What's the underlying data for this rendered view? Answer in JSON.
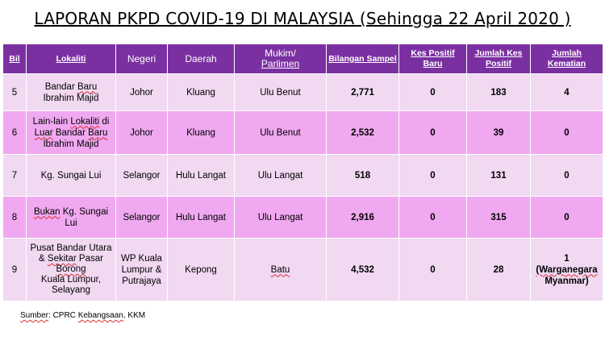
{
  "title": "LAPORAN PKPD COVID-19  DI MALAYSIA (Sehingga 22 April 2020 )",
  "columns": {
    "bil": "Bil",
    "lokaliti": "Lokaliti",
    "negeri": "Negeri",
    "daerah": "Daerah",
    "mukim_l1": "Mukim/",
    "mukim_l2": "Parlimen",
    "sampel": "Bilangan Sampel",
    "positif_baru_l1": "Kes Positif",
    "positif_baru_l2": "Baru",
    "jumlah_kes_l1": "Jumlah Kes",
    "jumlah_kes_l2": "Positif",
    "kematian_l1": "Jumlah",
    "kematian_l2": "Kematian"
  },
  "rows": [
    {
      "bil": "5",
      "lok_l1_a": "Bandar ",
      "lok_l1_b": "Baru",
      "lok_l2": "Ibrahim Majid",
      "negeri": "Johor",
      "daerah": "Kluang",
      "mukim": "Ulu Benut",
      "sampel": "2,771",
      "baru": "0",
      "jumlah": "183",
      "kematian": "4"
    },
    {
      "bil": "6",
      "lok_l1_a": "Lain-lain ",
      "lok_l1_b": "Lokaliti",
      "lok_l1_c": " di",
      "lok_l2_a": "Luar",
      "lok_l2_b": " Bandar ",
      "lok_l2_c": "Baru",
      "lok_l3": "Ibrahim Majid",
      "negeri": "Johor",
      "daerah": "Kluang",
      "mukim": "Ulu Benut",
      "sampel": "2,532",
      "baru": "0",
      "jumlah": "39",
      "kematian": "0"
    },
    {
      "bil": "7",
      "lokaliti": "Kg. Sungai Lui",
      "negeri": "Selangor",
      "daerah": "Hulu Langat",
      "mukim": "Ulu Langat",
      "sampel": "518",
      "baru": "0",
      "jumlah": "131",
      "kematian": "0"
    },
    {
      "bil": "8",
      "lok_l1_a": "Bukan",
      "lok_l1_b": " Kg. Sungai",
      "lok_l2": "Lui",
      "negeri": "Selangor",
      "daerah": "Hulu Langat",
      "mukim": "Ulu Langat",
      "sampel": "2,916",
      "baru": "0",
      "jumlah": "315",
      "kematian": "0"
    },
    {
      "bil": "9",
      "lok_l1": "Pusat Bandar Utara",
      "lok_l2_a": "& ",
      "lok_l2_b": "Sekitar",
      "lok_l2_c": " Pasar",
      "lok_l3": "Borong",
      "lok_l4": "Kuala Lumpur,",
      "lok_l5": "Selayang",
      "negeri_l1": "WP Kuala",
      "negeri_l2": "Lumpur &",
      "negeri_l3": "Putrajaya",
      "daerah": "Kepong",
      "mukim": "Batu",
      "sampel": "4,532",
      "baru": "0",
      "jumlah": "28",
      "kematian_l1": "1",
      "kematian_l2": "(Warganegara",
      "kematian_l3": "Myanmar)"
    }
  ],
  "source_a": "Sumber",
  "source_b": ": CPRC ",
  "source_c": "Kebangsaan",
  "source_d": ", KKM"
}
